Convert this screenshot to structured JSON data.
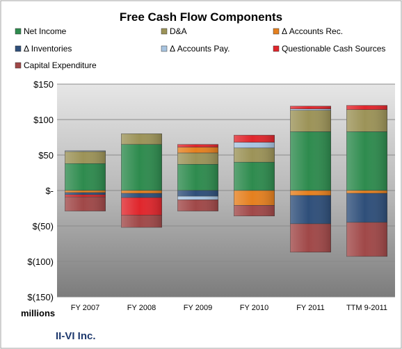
{
  "chart_data": {
    "type": "bar",
    "stacked": true,
    "title": "Free Cash Flow Components",
    "ylabel": "millions",
    "company": "II-VI Inc.",
    "categories": [
      "FY 2007",
      "FY 2008",
      "FY 2009",
      "FY 2010",
      "FY 2011",
      "TTM 9-2011"
    ],
    "yticks": [
      "$150",
      "$100",
      "$50",
      "$-",
      "$(50)",
      "$(100)",
      "$(150)"
    ],
    "ylim": [
      -150,
      150
    ],
    "grid": true,
    "legend_position": "top",
    "series": [
      {
        "name": "Net Income",
        "color": "#2e8b4e",
        "values": [
          38,
          65,
          37,
          40,
          83,
          83
        ]
      },
      {
        "name": "D&A",
        "color": "#9c9358",
        "values": [
          17,
          15,
          16,
          20,
          30,
          31
        ]
      },
      {
        "name": "Δ Accounts Rec.",
        "color": "#e5801f",
        "values": [
          -3,
          -4,
          8,
          -21,
          -7,
          -4
        ]
      },
      {
        "name": "Δ Inventories",
        "color": "#2f4f7a",
        "values": [
          -3,
          -6,
          -8,
          0,
          -40,
          -41
        ]
      },
      {
        "name": "Δ Accounts Pay.",
        "color": "#a8c4e0",
        "values": [
          1,
          0,
          -5,
          8,
          2,
          0
        ]
      },
      {
        "name": "Questionable Cash Sources",
        "color": "#e0262c",
        "values": [
          -3,
          -25,
          4,
          10,
          4,
          6
        ]
      },
      {
        "name": "Capital Expenditure",
        "color": "#a04848",
        "values": [
          -20,
          -17,
          -16,
          -15,
          -40,
          -48
        ]
      }
    ]
  }
}
